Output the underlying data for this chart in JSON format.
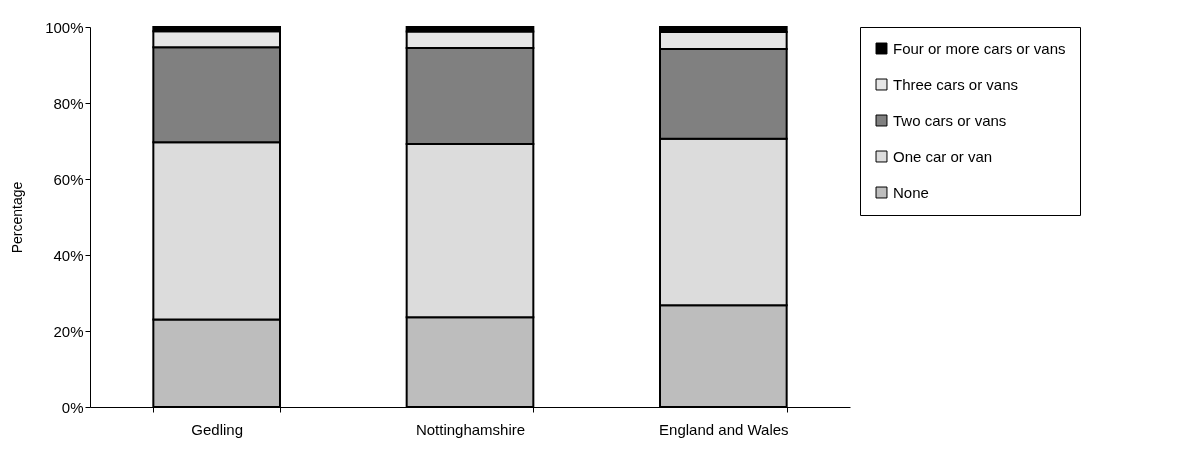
{
  "chart_data": {
    "type": "bar",
    "stacked": true,
    "ylabel": "Percentage",
    "categories": [
      "Gedling",
      "Nottinghamshire",
      "England and Wales"
    ],
    "series": [
      {
        "name": "None",
        "color": "#bdbdbd",
        "values": [
          23,
          23.6,
          26.8
        ]
      },
      {
        "name": "One car or van",
        "color": "#dcdcdc",
        "values": [
          46.7,
          45.6,
          43.8
        ]
      },
      {
        "name": "Two cars or vans",
        "color": "#808080",
        "values": [
          25,
          25.3,
          23.6
        ]
      },
      {
        "name": "Three cars or vans",
        "color": "#e6e6e6",
        "values": [
          4.2,
          4.3,
          4.5
        ]
      },
      {
        "name": "Four or more cars or vans",
        "color": "#000000",
        "values": [
          1.1,
          1.2,
          1.3
        ]
      }
    ],
    "ylim": [
      0,
      100
    ],
    "yticks": [
      {
        "value": 0,
        "label": "0%"
      },
      {
        "value": 20,
        "label": "20%"
      },
      {
        "value": 40,
        "label": "40%"
      },
      {
        "value": 60,
        "label": "60%"
      },
      {
        "value": 80,
        "label": "80%"
      },
      {
        "value": 100,
        "label": "100%"
      }
    ],
    "grid": false,
    "legend": "right"
  }
}
